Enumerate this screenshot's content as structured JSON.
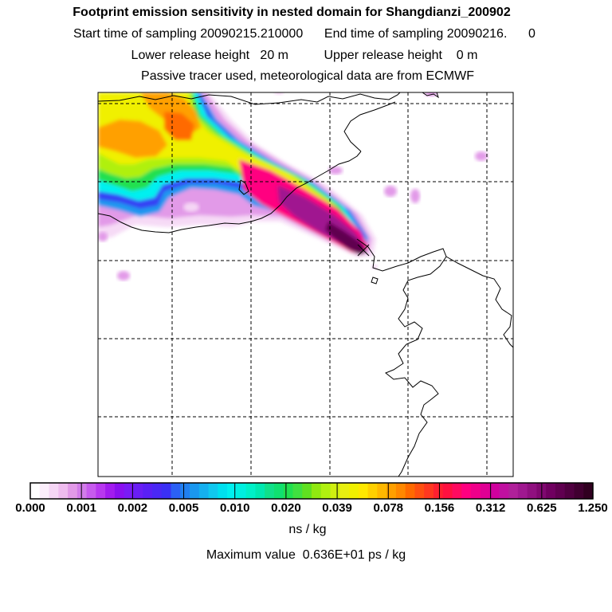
{
  "titles": {
    "line1": "Footprint emission sensitivity in nested domain for Shangdianzi_200902",
    "line2": "Start time of sampling 20090215.210000      End time of sampling 20090216.      0",
    "line3": "Lower release height   20 m          Upper release height    0 m",
    "line4": "Passive tracer used, meteorological data are from ECMWF"
  },
  "colorbar": {
    "tick_labels": [
      "0.000",
      "0.001",
      "0.002",
      "0.005",
      "0.010",
      "0.020",
      "0.039",
      "0.078",
      "0.156",
      "0.312",
      "0.625",
      "1.250"
    ],
    "colors": [
      "#ffffff",
      "#fbeefb",
      "#f5d6f5",
      "#efbcef",
      "#e29ae8",
      "#d27cea",
      "#c75bee",
      "#b838f0",
      "#a21cf0",
      "#8a10f0",
      "#7a1bf5",
      "#6a1ef5",
      "#5a20f5",
      "#4a28f5",
      "#3a30f5",
      "#2b60f5",
      "#2080f0",
      "#1a98f0",
      "#15b0f0",
      "#10c8f0",
      "#00e0f0",
      "#00f0f0",
      "#00f0e0",
      "#00f0c8",
      "#00e8b0",
      "#10e08a",
      "#10e070",
      "#20e050",
      "#40e040",
      "#60e020",
      "#90e810",
      "#b0f010",
      "#d0f010",
      "#e8f010",
      "#f0f000",
      "#ffe800",
      "#ffd000",
      "#ffb800",
      "#ffa000",
      "#ff8800",
      "#ff6a00",
      "#ff5010",
      "#ff3820",
      "#ff2030",
      "#ff1040",
      "#ff0a60",
      "#ff0080",
      "#f0008a",
      "#e00094",
      "#d0009e",
      "#c010a0",
      "#b0209a",
      "#a01890",
      "#901080",
      "#800870",
      "#700060",
      "#600050",
      "#500040",
      "#400030",
      "#300020"
    ]
  },
  "units": "ns / kg",
  "maximum": "Maximum value  0.636E+01 ps / kg",
  "palette": {
    "yellow": "#f0f000",
    "orange": "#ffa000",
    "redorange": "#ff6a00",
    "lightgreen": "#b0f010",
    "green": "#20e050",
    "cyan": "#00f0f0",
    "lightblue": "#1a98f0",
    "blue": "#3a30f5",
    "violet": "#a21cf0",
    "lightpurple": "#e29ae8",
    "palepink": "#f5d6f5",
    "magenta": "#ff0080",
    "darkmagenta": "#a01890",
    "darkpurple": "#600050"
  }
}
